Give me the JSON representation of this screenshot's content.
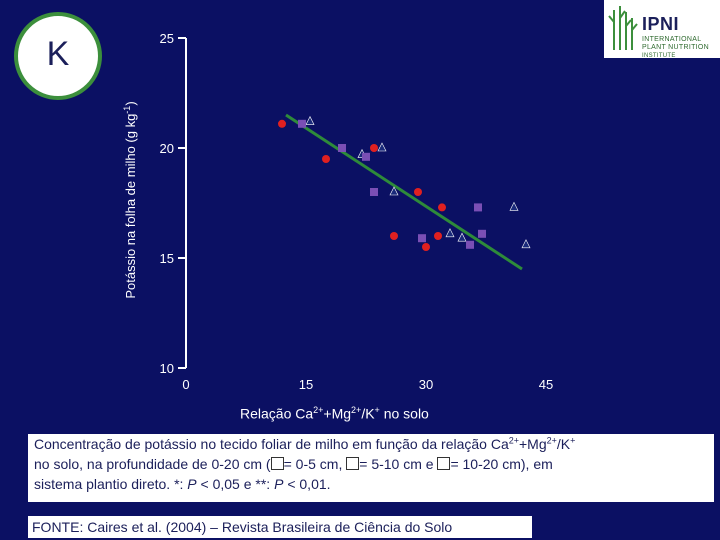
{
  "panel_letter": "K",
  "logo": {
    "name": "IPNI",
    "line1": "INTERNATIONAL",
    "line2": "PLANT NUTRITION",
    "line3": "INSTITUTE"
  },
  "colors": {
    "background": "#0b1063",
    "series_0_5": "#e02020",
    "series_5_10": "#1a2a7a",
    "series_10_20": "#7a4fb5",
    "trend": "#2e8b3a"
  },
  "chart_data": {
    "type": "scatter",
    "ylabel": "Potássio na folha de milho (g kg-1)",
    "xlim": [
      0,
      45
    ],
    "ylim": [
      10,
      25
    ],
    "x_ticks": [
      0,
      15,
      30,
      45
    ],
    "y_ticks": [
      10,
      15,
      20,
      25
    ],
    "grid": false,
    "series": [
      {
        "marker": "circle",
        "color": "#e02020",
        "points": [
          [
            12,
            21.1
          ],
          [
            17.5,
            19.5
          ],
          [
            23.5,
            20.0
          ],
          [
            26,
            16.0
          ],
          [
            29,
            18.0
          ],
          [
            30,
            15.5
          ],
          [
            31.5,
            16.0
          ],
          [
            32,
            17.3
          ]
        ]
      },
      {
        "marker": "triangle",
        "color": "#1a2a7a",
        "points": [
          [
            15.5,
            21.2
          ],
          [
            22,
            19.7
          ],
          [
            24.5,
            20.0
          ],
          [
            26,
            18.0
          ],
          [
            33,
            16.1
          ],
          [
            34.5,
            15.9
          ],
          [
            41,
            17.3
          ],
          [
            42.5,
            15.6
          ]
        ]
      },
      {
        "marker": "square",
        "color": "#7a4fb5",
        "points": [
          [
            14.5,
            21.1
          ],
          [
            19.5,
            20.0
          ],
          [
            22.5,
            19.6
          ],
          [
            23.5,
            18.0
          ],
          [
            29.5,
            15.9
          ],
          [
            35.5,
            15.6
          ],
          [
            36.5,
            17.3
          ],
          [
            37,
            16.1
          ]
        ]
      }
    ],
    "trendline": {
      "x": [
        12.5,
        42
      ],
      "y": [
        21.5,
        14.5
      ]
    }
  },
  "xlabel": {
    "pre": "Relação Ca",
    "sup1": "2+",
    "mid": "+Mg",
    "sup2": "2+",
    "post": "/K",
    "sup3": "+",
    "tail": " no solo"
  },
  "caption": {
    "line1a": "Concentração de potássio no tecido foliar de milho em função da relação Ca",
    "line1_sup1": "2+",
    "line1b": "+Mg",
    "line1_sup2": "2+",
    "line1c": "/K",
    "line1_sup3": "+",
    "line2a": "no solo, na profundidade de 0-20 cm (",
    "line2b": "= 0-5 cm, ",
    "line2c": "= 5-10 cm e ",
    "line2d": "= 10-20 cm), em",
    "line3a": "sistema plantio direto. *: ",
    "line3_p1": "P",
    "line3b": " < 0,05 e **: ",
    "line3_p2": "P",
    "line3c": " < 0,01."
  },
  "source": "FONTE: Caires et al. (2004) – Revista Brasileira de Ciência do Solo"
}
